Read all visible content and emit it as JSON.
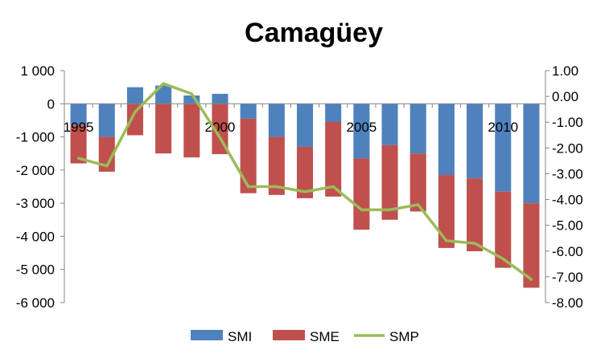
{
  "chart_data": {
    "type": "bar",
    "title": "Camagüey",
    "x": [
      1995,
      1996,
      1997,
      1998,
      1999,
      2000,
      2001,
      2002,
      2003,
      2004,
      2005,
      2006,
      2007,
      2008,
      2009,
      2010,
      2011
    ],
    "x_tick_labels": [
      "1995",
      "2000",
      "2005",
      "2010"
    ],
    "x_tick_years": [
      1995,
      2000,
      2005,
      2010
    ],
    "series": [
      {
        "name": "SMI",
        "type": "bar",
        "axis": "left",
        "color": "#4f81bd",
        "values": [
          -650,
          -1000,
          500,
          550,
          250,
          300,
          -450,
          -1000,
          -1300,
          -550,
          -1650,
          -1250,
          -1500,
          -2150,
          -2250,
          -2650,
          -3000
        ]
      },
      {
        "name": "SME",
        "type": "bar",
        "axis": "left",
        "color": "#c0504d",
        "values": [
          -1150,
          -1050,
          -950,
          -1500,
          -1620,
          -1520,
          -2250,
          -1750,
          -1550,
          -2250,
          -2150,
          -2250,
          -1750,
          -2200,
          -2200,
          -2300,
          -2550
        ]
      },
      {
        "name": "SMP",
        "type": "line",
        "axis": "right",
        "color": "#9bbb59",
        "values": [
          -2.4,
          -2.7,
          -0.6,
          0.5,
          0.1,
          -1.6,
          -3.5,
          -3.5,
          -3.7,
          -3.5,
          -4.4,
          -4.4,
          -4.2,
          -5.6,
          -5.7,
          -6.3,
          -7.1
        ]
      }
    ],
    "y_left": {
      "min": -6000,
      "max": 1000,
      "step": 1000,
      "tick_labels": [
        "1 000",
        "0",
        "-1 000",
        "-2 000",
        "-3 000",
        "-4 000",
        "-5 000",
        "-6 000"
      ]
    },
    "y_right": {
      "min": -8,
      "max": 1,
      "step": 1,
      "tick_labels": [
        "1.00",
        "0.00",
        "-1.00",
        "-2.00",
        "-3.00",
        "-4.00",
        "-5.00",
        "-6.00",
        "-7.00",
        "-8.00"
      ]
    },
    "stacked": true,
    "grid": false,
    "legend_position": "bottom"
  }
}
